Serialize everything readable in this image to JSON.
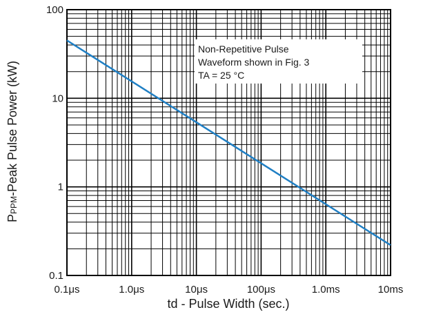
{
  "chart_data": {
    "type": "line",
    "title": "",
    "xlabel": "td - Pulse Width (sec.)",
    "ylabel": {
      "prefix": "P",
      "subscript": "PPM",
      "suffix": "-Peak Pulse Power (kW)"
    },
    "x_scale": "log",
    "y_scale": "log",
    "x_unit": "seconds",
    "xlim": [
      1e-07,
      0.01
    ],
    "ylim": [
      0.1,
      100
    ],
    "grid": true,
    "x_ticks": [
      {
        "value": 1e-07,
        "label": "0.1μs"
      },
      {
        "value": 1e-06,
        "label": "1.0μs"
      },
      {
        "value": 1e-05,
        "label": "10μs"
      },
      {
        "value": 0.0001,
        "label": "100μs"
      },
      {
        "value": 0.001,
        "label": "1.0ms"
      },
      {
        "value": 0.01,
        "label": "10ms"
      }
    ],
    "y_ticks": [
      {
        "value": 0.1,
        "label": "0.1"
      },
      {
        "value": 1,
        "label": "1"
      },
      {
        "value": 10,
        "label": "10"
      },
      {
        "value": 100,
        "label": "100"
      }
    ],
    "series": [
      {
        "color": "#1f7fc4",
        "x": [
          1e-07,
          0.01
        ],
        "y": [
          45,
          0.22
        ]
      }
    ],
    "annotations": [
      "Non-Repetitive Pulse",
      "Waveform shown in Fig. 3",
      "TA = 25 °C"
    ]
  }
}
